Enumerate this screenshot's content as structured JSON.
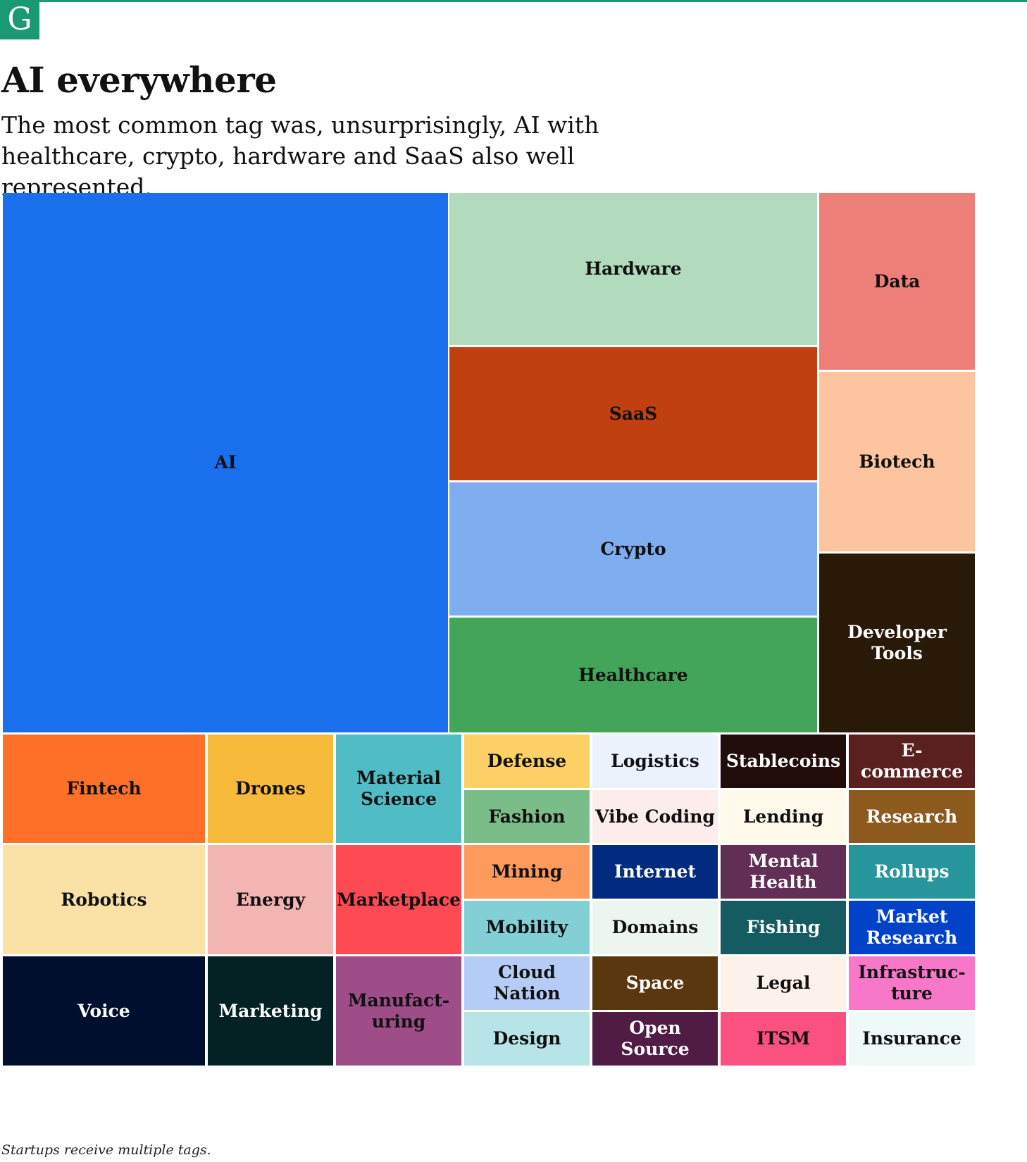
{
  "header": {
    "logo_letter": "G",
    "title": "AI everywhere",
    "subtitle": "The most common tag was, unsurprisingly, AI with healthcare, crypto, hardware and SaaS also well represented.",
    "footnote": "Startups receive multiple tags."
  },
  "colors": {
    "brand": "#1a9a73"
  },
  "chart_data": {
    "type": "treemap",
    "title": "AI everywhere",
    "values_shown": false,
    "tiles": [
      {
        "label": "AI",
        "fill": "#1a6fec",
        "text_color": "#111111"
      },
      {
        "label": "Hardware",
        "fill": "#b2dabd",
        "text_color": "#111111"
      },
      {
        "label": "SaaS",
        "fill": "#c04010",
        "text_color": "#111111"
      },
      {
        "label": "Crypto",
        "fill": "#7eadf0",
        "text_color": "#111111"
      },
      {
        "label": "Healthcare",
        "fill": "#42a55a",
        "text_color": "#111111"
      },
      {
        "label": "Data",
        "fill": "#ee7f78",
        "text_color": "#111111"
      },
      {
        "label": "Biotech",
        "fill": "#fdc59f",
        "text_color": "#111111"
      },
      {
        "label": "Developer Tools",
        "fill": "#291a07",
        "text_color": "#ffffff"
      },
      {
        "label": "Fintech",
        "fill": "#fe7028",
        "text_color": "#111111"
      },
      {
        "label": "Drones",
        "fill": "#f8ba3b",
        "text_color": "#111111"
      },
      {
        "label": "Material\nScience",
        "fill": "#50bdc6",
        "text_color": "#111111"
      },
      {
        "label": "Defense",
        "fill": "#fdd066",
        "text_color": "#111111"
      },
      {
        "label": "Logistics",
        "fill": "#ecf2fc",
        "text_color": "#111111"
      },
      {
        "label": "Stablecoins",
        "fill": "#230d0c",
        "text_color": "#ffffff"
      },
      {
        "label": "E-commerce",
        "fill": "#5a201d",
        "text_color": "#ffffff"
      },
      {
        "label": "Fashion",
        "fill": "#7bbd89",
        "text_color": "#111111"
      },
      {
        "label": "Vibe Coding",
        "fill": "#fdecec",
        "text_color": "#111111"
      },
      {
        "label": "Lending",
        "fill": "#fffaea",
        "text_color": "#111111"
      },
      {
        "label": "Research",
        "fill": "#8d5a1e",
        "text_color": "#ffffff"
      },
      {
        "label": "Robotics",
        "fill": "#fae1a5",
        "text_color": "#111111"
      },
      {
        "label": "Energy",
        "fill": "#f3b5b1",
        "text_color": "#111111"
      },
      {
        "label": "Marketplace",
        "fill": "#fe4a53",
        "text_color": "#111111"
      },
      {
        "label": "Mining",
        "fill": "#fd9a5c",
        "text_color": "#111111"
      },
      {
        "label": "Internet",
        "fill": "#002b7e",
        "text_color": "#ffffff"
      },
      {
        "label": "Mental\nHealth",
        "fill": "#612e55",
        "text_color": "#ffffff"
      },
      {
        "label": "Rollups",
        "fill": "#26959c",
        "text_color": "#ffffff"
      },
      {
        "label": "Mobility",
        "fill": "#82d0d6",
        "text_color": "#111111"
      },
      {
        "label": "Domains",
        "fill": "#ecf5ee",
        "text_color": "#111111"
      },
      {
        "label": "Fishing",
        "fill": "#145c61",
        "text_color": "#ffffff"
      },
      {
        "label": "Market\nResearch",
        "fill": "#0043c9",
        "text_color": "#ffffff"
      },
      {
        "label": "Voice",
        "fill": "#000f2e",
        "text_color": "#ffffff"
      },
      {
        "label": "Marketing",
        "fill": "#042223",
        "text_color": "#ffffff"
      },
      {
        "label": "Manufact-\nuring",
        "fill": "#9f4d88",
        "text_color": "#111111"
      },
      {
        "label": "Cloud Nation",
        "fill": "#b5cdf6",
        "text_color": "#111111"
      },
      {
        "label": "Space",
        "fill": "#5b3710",
        "text_color": "#ffffff"
      },
      {
        "label": "Legal",
        "fill": "#fdf2ea",
        "text_color": "#111111"
      },
      {
        "label": "Infrastruc-\nture",
        "fill": "#f777c8",
        "text_color": "#111111"
      },
      {
        "label": "Design",
        "fill": "#b7e4e7",
        "text_color": "#111111"
      },
      {
        "label": "Open Source",
        "fill": "#501c44",
        "text_color": "#ffffff"
      },
      {
        "label": "ITSM",
        "fill": "#fb5181",
        "text_color": "#111111"
      },
      {
        "label": "Insurance",
        "fill": "#eff9f8",
        "text_color": "#111111"
      }
    ]
  }
}
